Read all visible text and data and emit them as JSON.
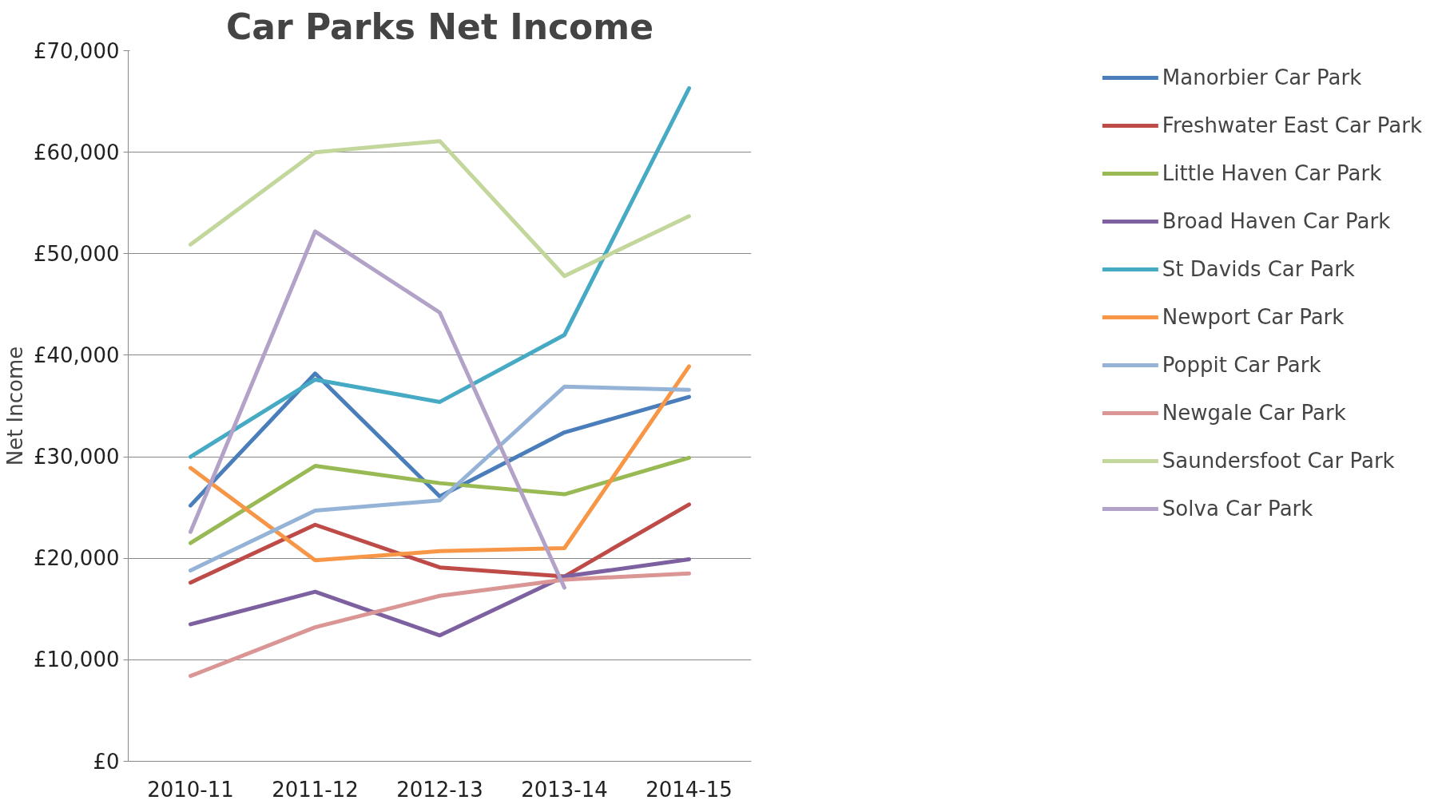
{
  "chart_data": {
    "type": "line",
    "title": "Car Parks Net Income",
    "ylabel": "Net Income",
    "categories": [
      "2010-11",
      "2011-12",
      "2012-13",
      "2013-14",
      "2014-15"
    ],
    "ylim": [
      0,
      70000
    ],
    "yticks": [
      {
        "value": 0,
        "label": "£0"
      },
      {
        "value": 10000,
        "label": "£10,000"
      },
      {
        "value": 20000,
        "label": "£20,000"
      },
      {
        "value": 30000,
        "label": "£30,000"
      },
      {
        "value": 40000,
        "label": "£40,000"
      },
      {
        "value": 50000,
        "label": "£50,000"
      },
      {
        "value": 60000,
        "label": "£60,000"
      },
      {
        "value": 70000,
        "label": "£70,000"
      }
    ],
    "grid": "y",
    "legend": "right",
    "marker": "none",
    "line_style": "solid",
    "series": [
      {
        "name": "Manorbier Car Park",
        "color": "#4a7ebb",
        "values": [
          25200,
          38200,
          26100,
          32400,
          35900
        ]
      },
      {
        "name": "Freshwater East Car Park",
        "color": "#be4b48",
        "values": [
          17600,
          23300,
          19100,
          18200,
          25300
        ]
      },
      {
        "name": "Little Haven Car Park",
        "color": "#98b954",
        "values": [
          21500,
          29100,
          27400,
          26300,
          29900
        ]
      },
      {
        "name": "Broad Haven Car Park",
        "color": "#7d60a0",
        "values": [
          13500,
          16700,
          12400,
          18200,
          19900
        ]
      },
      {
        "name": "St Davids Car Park",
        "color": "#46aac5",
        "values": [
          30000,
          37600,
          35400,
          42000,
          66300
        ]
      },
      {
        "name": "Newport Car Park",
        "color": "#f79646",
        "values": [
          28900,
          19800,
          20700,
          21000,
          38900
        ]
      },
      {
        "name": "Poppit Car Park",
        "color": "#95b3d7",
        "values": [
          18800,
          24700,
          25700,
          36900,
          36600
        ]
      },
      {
        "name": "Newgale Car Park",
        "color": "#d99694",
        "values": [
          8400,
          13200,
          16300,
          17900,
          18500
        ]
      },
      {
        "name": "Saundersfoot Car Park",
        "color": "#c3d69b",
        "values": [
          50900,
          60000,
          61100,
          47800,
          53700
        ]
      },
      {
        "name": "Solva Car Park",
        "color": "#b3a2c7",
        "values": [
          22600,
          52200,
          44200,
          17100,
          null
        ]
      }
    ]
  }
}
